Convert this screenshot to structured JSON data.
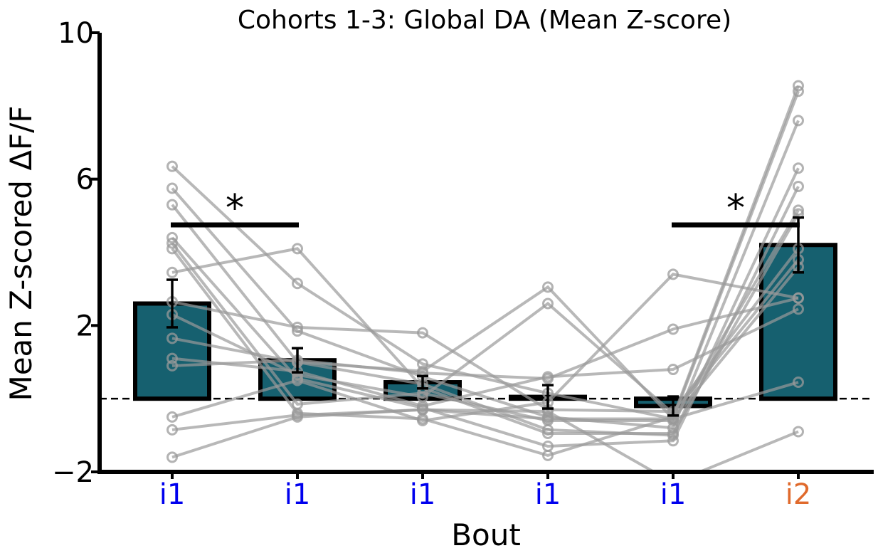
{
  "chart_data": {
    "type": "bar",
    "title": "Cohorts 1-3: Global DA (Mean Z-score)",
    "xlabel": "Bout",
    "ylabel": "Mean Z-scored ΔF/F",
    "ylim": [
      -2,
      10
    ],
    "yticks": [
      -2,
      2,
      6,
      10
    ],
    "ytick_labels": [
      "−2",
      "2",
      "6",
      "10"
    ],
    "grid": false,
    "baseline_y": 0,
    "categories": [
      "i1",
      "i1",
      "i1",
      "i1",
      "i1",
      "i2"
    ],
    "category_colors": [
      "#0000ee",
      "#0000ee",
      "#0000ee",
      "#0000ee",
      "#0000ee",
      "#e06a2c"
    ],
    "bar_color": "#16606f",
    "values": [
      2.6,
      1.05,
      0.45,
      0.05,
      -0.2,
      4.2
    ],
    "errors": [
      0.65,
      0.33,
      0.17,
      0.32,
      0.26,
      0.75
    ],
    "subject_series": [
      [
        6.35,
        3.15,
        0.95,
        0.15,
        -0.55,
        8.4
      ],
      [
        5.75,
        1.85,
        0.6,
        -0.5,
        -0.8,
        7.6
      ],
      [
        5.3,
        1.0,
        0.4,
        -0.85,
        -1.0,
        6.3
      ],
      [
        4.4,
        0.55,
        -0.25,
        -1.3,
        -1.15,
        5.8
      ],
      [
        4.25,
        -0.15,
        0.15,
        -0.6,
        -0.6,
        5.15
      ],
      [
        4.1,
        -0.4,
        -0.55,
        -1.55,
        -0.5,
        8.55
      ],
      [
        3.45,
        4.1,
        0.3,
        -0.95,
        -0.95,
        5.05
      ],
      [
        2.65,
        1.95,
        1.8,
        -0.3,
        -0.35,
        4.1
      ],
      [
        2.3,
        0.65,
        0.05,
        2.6,
        -0.4,
        3.8
      ],
      [
        1.65,
        1.0,
        0.75,
        3.05,
        -0.55,
        3.6
      ],
      [
        1.1,
        0.75,
        -0.2,
        0.6,
        0.8,
        2.45
      ],
      [
        0.9,
        1.05,
        0.7,
        0.55,
        1.9,
        2.75
      ],
      [
        -0.5,
        0.5,
        -0.6,
        -0.1,
        3.4,
        2.75
      ],
      [
        -0.85,
        -0.45,
        -0.3,
        -0.55,
        -0.55,
        0.45
      ],
      [
        -1.6,
        -0.5,
        -0.3,
        -0.35,
        -2.3,
        -0.9
      ]
    ],
    "significance": [
      {
        "from": 0,
        "to": 1,
        "y": 4.75,
        "label": "*"
      },
      {
        "from": 4,
        "to": 5,
        "y": 4.75,
        "label": "*"
      }
    ]
  }
}
